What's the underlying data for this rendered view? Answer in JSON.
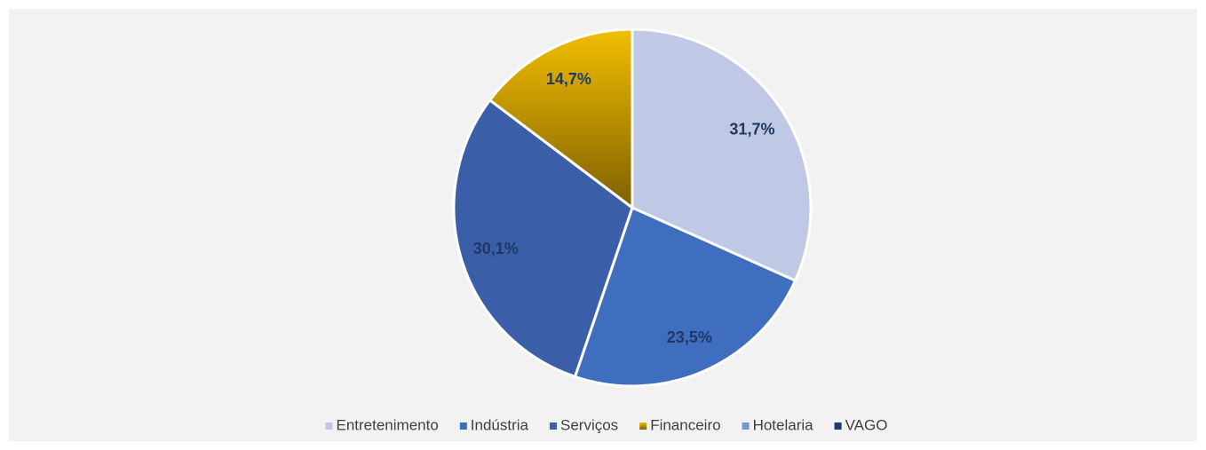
{
  "chart_data": {
    "type": "pie",
    "categories": [
      "Entretenimento",
      "Indústria",
      "Serviços",
      "Financeiro",
      "Hotelaria",
      "VAGO"
    ],
    "values": [
      31.7,
      23.5,
      30.1,
      14.7,
      0,
      0
    ],
    "value_labels": [
      "31,7%",
      "23,5%",
      "30,1%",
      "14,7%",
      null,
      null
    ],
    "colors": [
      "#bfc8e4",
      "#3f6ebf",
      "#3a5fa8",
      "#f2be00",
      "#7b96d0",
      "#203a6e"
    ],
    "legend": "bottom"
  }
}
